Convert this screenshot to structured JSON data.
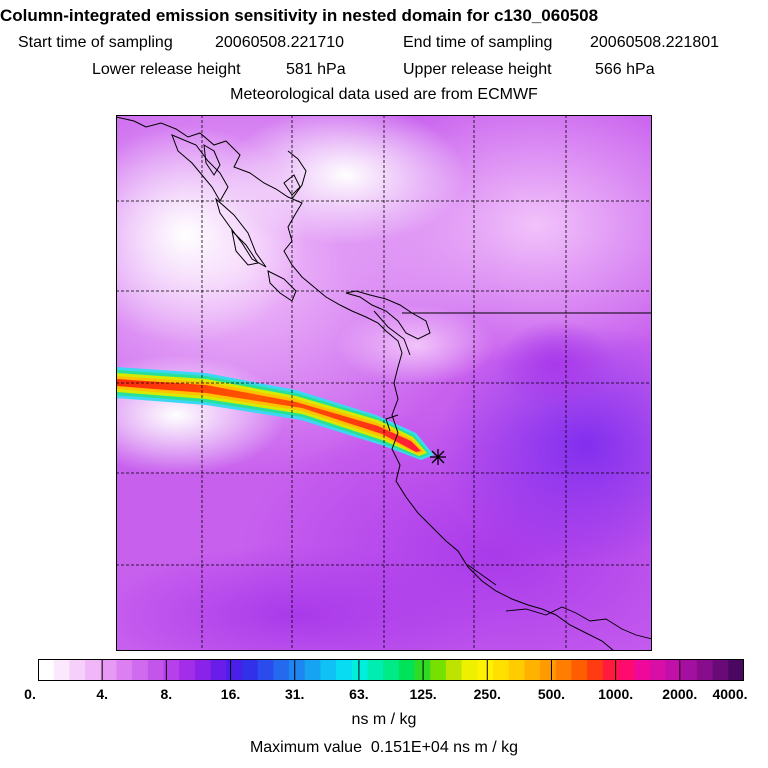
{
  "title": "Column-integrated emission sensitivity in nested domain for c130_060508",
  "sampling": {
    "start_label": "Start time of sampling",
    "start_value": "20060508.221710",
    "end_label": "End time of sampling",
    "end_value": "20060508.221801"
  },
  "release": {
    "lower_label": "Lower release height",
    "lower_value": "581 hPa",
    "upper_label": "Upper release height",
    "upper_value": "566 hPa"
  },
  "met_source": "Meteorological data used are from ECMWF",
  "colorbar": {
    "tick_labels": [
      "0.",
      "4.",
      "8.",
      "16.",
      "31.",
      "63.",
      "125.",
      "250.",
      "500.",
      "1000.",
      "2000.",
      "4000."
    ],
    "colors": [
      "#ffffff",
      "#fbe8fd",
      "#f6d0fb",
      "#f0b6f8",
      "#e69af4",
      "#dc80f1",
      "#d06aee",
      "#c455eb",
      "#b640ea",
      "#a32ee8",
      "#8a22e8",
      "#6a1de9",
      "#4a1fea",
      "#3330ea",
      "#2b4cec",
      "#2469ee",
      "#1e86f0",
      "#16a4f2",
      "#0fc1f4",
      "#07dcf2",
      "#00eede",
      "#00edb2",
      "#00ea85",
      "#00e257",
      "#2fdb24",
      "#76e000",
      "#bce400",
      "#eef000",
      "#fff200",
      "#ffe000",
      "#ffcc00",
      "#ffb300",
      "#ff9a00",
      "#ff7d00",
      "#ff5e00",
      "#ff3b12",
      "#ff1a3e",
      "#ff0a6e",
      "#f0089a",
      "#d90ea6",
      "#c010a8",
      "#a30f9e",
      "#870d8c",
      "#6a0a78",
      "#4a0860"
    ],
    "units": "ns m / kg"
  },
  "max_value": {
    "label": "Maximum value",
    "value": "0.151E+04 ns m / kg"
  }
}
